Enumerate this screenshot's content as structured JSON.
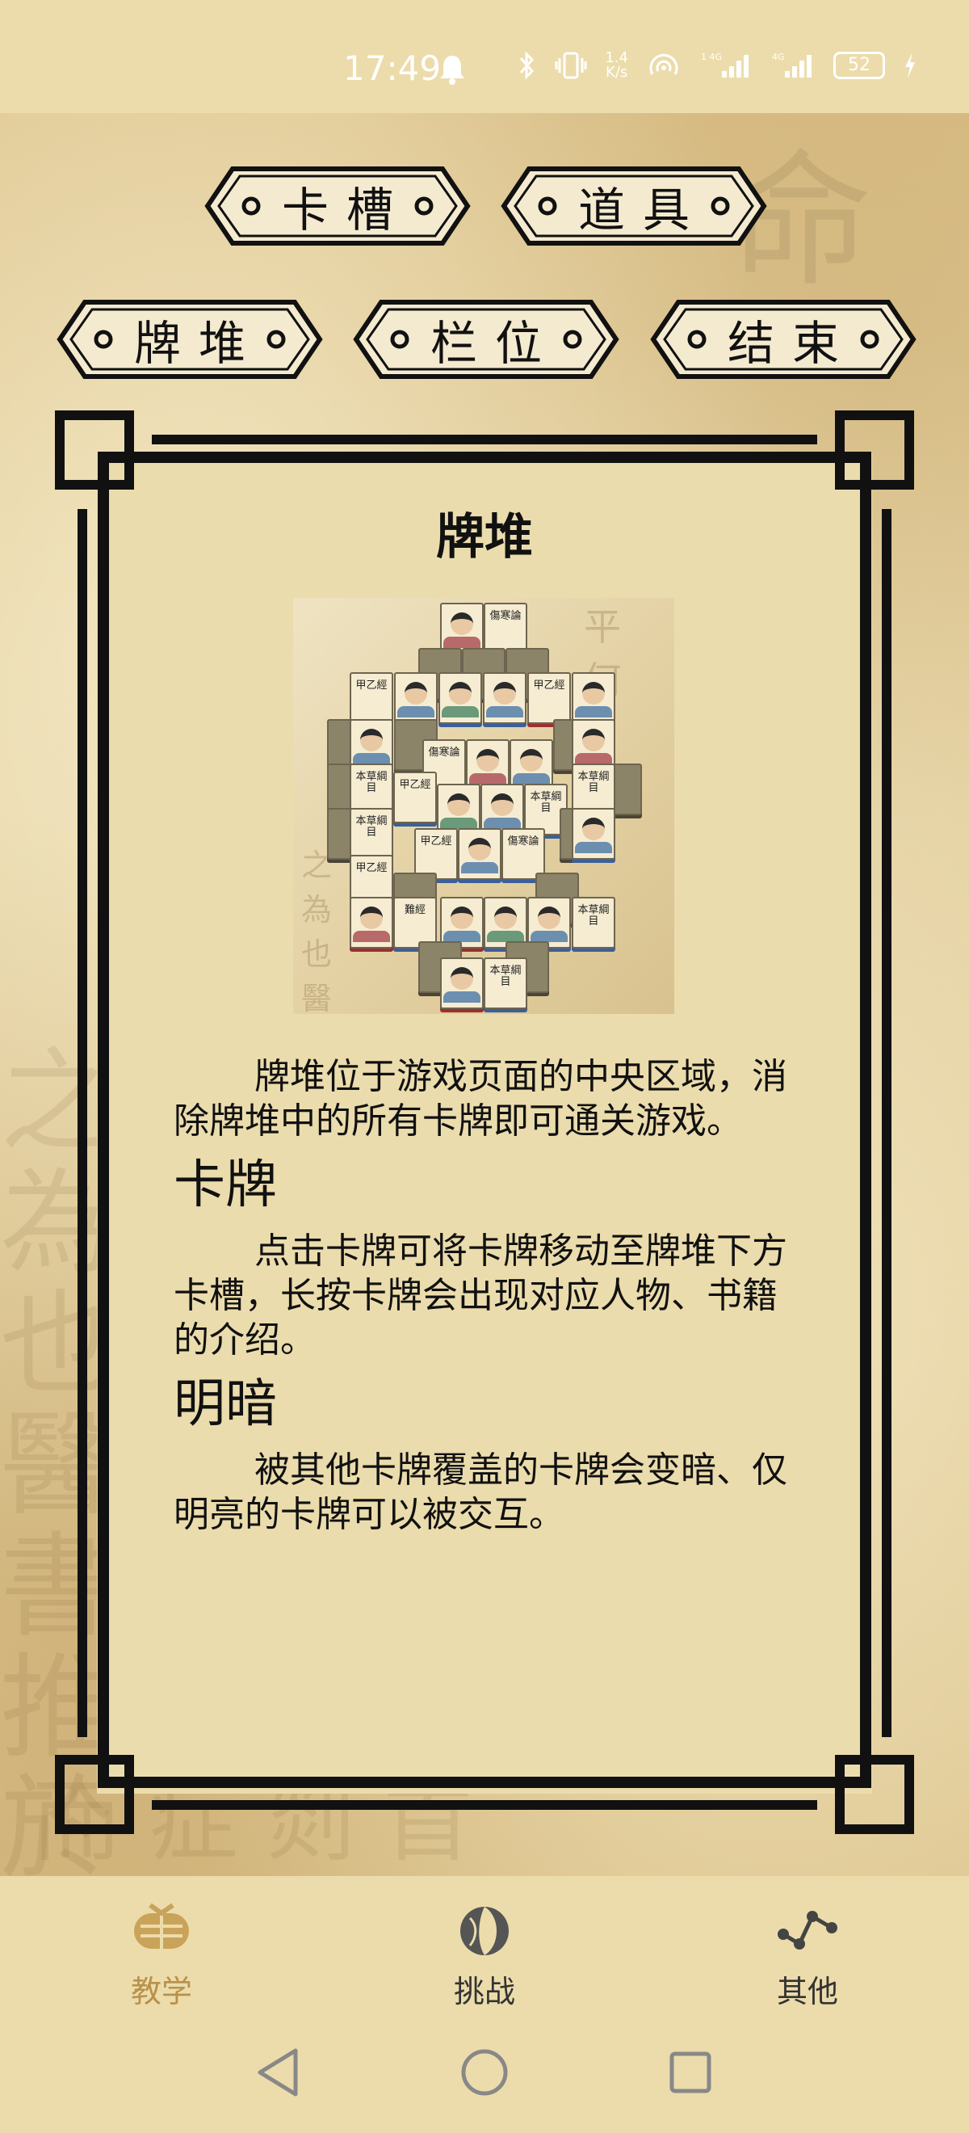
{
  "status_bar": {
    "time": "17:49",
    "speed_top": "1.4",
    "speed_bottom": "K/s",
    "battery": "52",
    "sig1": "1 4G",
    "sig2": "4G"
  },
  "tabs": [
    {
      "label": "卡槽"
    },
    {
      "label": "道具"
    },
    {
      "label": "牌堆"
    },
    {
      "label": "栏位"
    },
    {
      "label": "结束"
    }
  ],
  "content": {
    "title": "牌堆",
    "para1": "牌堆位于游戏页面的中央区域，消除牌堆中的所有卡牌即可通关游戏。",
    "section2_title": "卡牌",
    "para2": "点击卡牌可将卡牌移动至牌堆下方卡槽，长按卡牌会出现对应人物、书籍的介绍。",
    "section3_title": "明暗",
    "para3": "被其他卡牌覆盖的卡牌会变暗、仅明亮的卡牌可以被交互。"
  },
  "illustration": {
    "tile_texts": [
      "傷寒論",
      "甲乙經",
      "本草綱目",
      "難經"
    ]
  },
  "bottom_nav": [
    {
      "label": "教学",
      "icon": "teaching-icon",
      "active": true
    },
    {
      "label": "挑战",
      "icon": "challenge-icon",
      "active": false
    },
    {
      "label": "其他",
      "icon": "other-icon",
      "active": false
    }
  ],
  "colors": {
    "accent": "#b8914a",
    "parchment": "#e8d8a8",
    "frame": "#111111"
  }
}
